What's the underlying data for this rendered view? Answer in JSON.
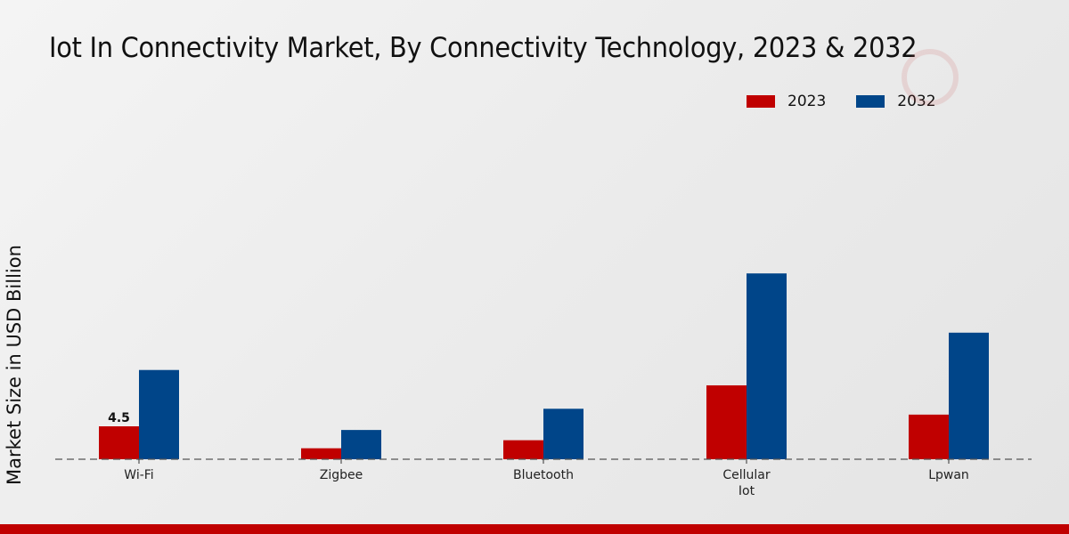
{
  "chart_data": {
    "type": "bar",
    "title": "Iot In Connectivity Market, By Connectivity Technology, 2023 & 2032",
    "xlabel": "",
    "ylabel": "Market Size in USD Billion",
    "categories": [
      "Wi-Fi",
      "Zigbee",
      "Bluetooth",
      "Cellular\nIot",
      "Lpwan"
    ],
    "series": [
      {
        "name": "2023",
        "color": "#c00000",
        "values": [
          4.5,
          1.5,
          2.6,
          10.1,
          6.1
        ]
      },
      {
        "name": "2032",
        "color": "#004589",
        "values": [
          12.2,
          4.0,
          6.9,
          25.4,
          17.3
        ]
      }
    ],
    "data_labels": [
      {
        "series": "2023",
        "category": "Wi-Fi",
        "text": "4.5"
      }
    ],
    "ylim": [
      0,
      40
    ],
    "grid": false,
    "legend_position": "top-right"
  }
}
